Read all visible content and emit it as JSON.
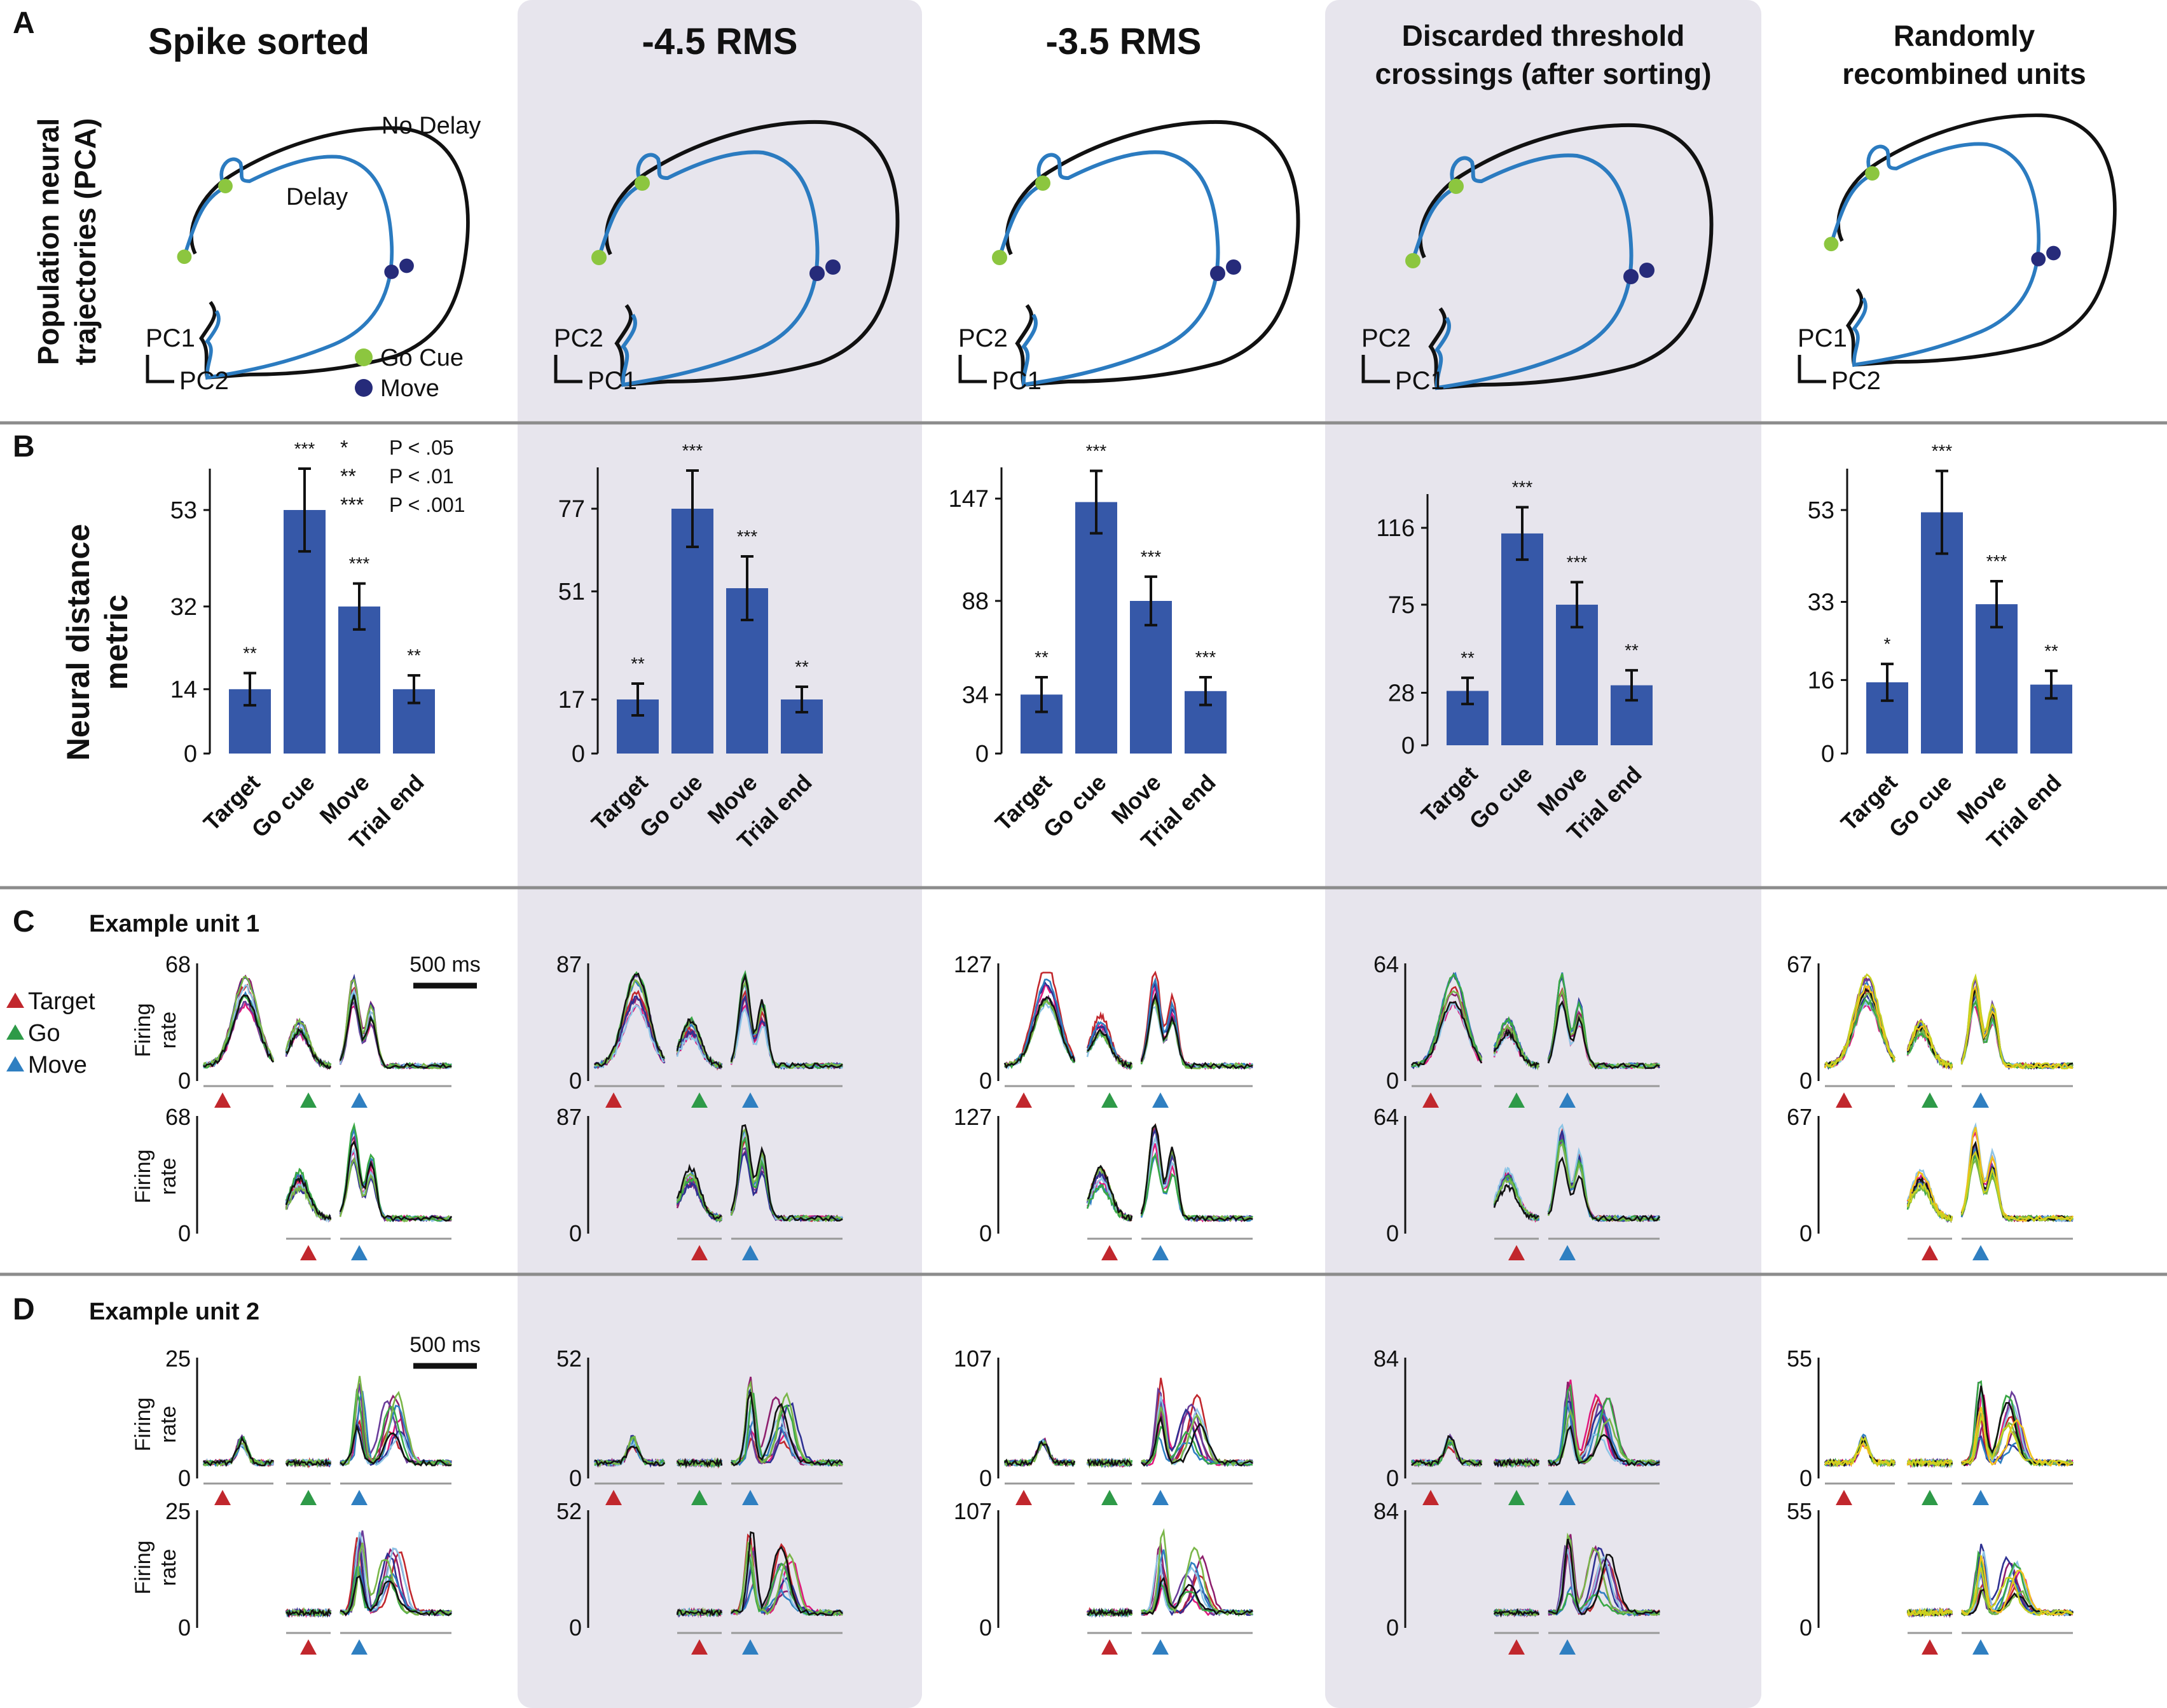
{
  "panel_letters": [
    "A",
    "B",
    "C",
    "D"
  ],
  "columns": [
    {
      "title": [
        "Spike sorted"
      ],
      "pc_bottom": "PC2",
      "pc_left": "PC1",
      "shaded": false
    },
    {
      "title": [
        "-4.5 RMS"
      ],
      "pc_bottom": "PC1",
      "pc_left": "PC2",
      "shaded": true
    },
    {
      "title": [
        "-3.5 RMS"
      ],
      "pc_bottom": "PC1",
      "pc_left": "PC2",
      "shaded": false
    },
    {
      "title": [
        "Discarded threshold",
        "crossings (after sorting)"
      ],
      "pc_bottom": "PC1",
      "pc_left": "PC2",
      "shaded": true
    },
    {
      "title": [
        "Randomly",
        "recombined units"
      ],
      "pc_bottom": "PC2",
      "pc_left": "PC1",
      "shaded": false
    }
  ],
  "row_a": {
    "ylabel": [
      "Population neural",
      "trajectories (PCA)"
    ],
    "label_no_delay": "No Delay",
    "label_delay": "Delay",
    "legend": [
      {
        "label": "Go Cue",
        "color": "#8cc63f"
      },
      {
        "label": "Move",
        "color": "#262b7a"
      }
    ]
  },
  "row_b": {
    "ylabel": [
      "Neural distance",
      "metric"
    ],
    "sig_legend": [
      {
        "stars": "*",
        "text": "P < .05"
      },
      {
        "stars": "**",
        "text": "P < .01"
      },
      {
        "stars": "***",
        "text": "P < .001"
      }
    ]
  },
  "row_c": {
    "title": "Example unit 1",
    "scale_label": "500 ms"
  },
  "row_d": {
    "title": "Example unit 2",
    "scale_label": "500 ms"
  },
  "trace_ylabel": [
    "Firing",
    "rate"
  ],
  "event_legend": [
    {
      "label": "Target",
      "color": "#c1272d"
    },
    {
      "label": "Go",
      "color": "#2e9a48"
    },
    {
      "label": "Move",
      "color": "#2f7fc1"
    }
  ],
  "colors": {
    "bar": "#3658a8",
    "shade": "#e7e5ed",
    "no_delay": "#111111",
    "delay": "#2b7bc0",
    "traces": [
      "#c1272d",
      "#e0197d",
      "#8e1f6e",
      "#6a3d9a",
      "#2e3192",
      "#2f7fc1",
      "#8ec5e6",
      "#39a845",
      "#7ab648",
      "#111111"
    ],
    "traces_random_extra": [
      "#f2c21b",
      "#c8d320"
    ]
  },
  "chart_data": [
    {
      "type": "bar",
      "panel": "B-Spike sorted",
      "categories": [
        "Target",
        "Go cue",
        "Move",
        "Trial end"
      ],
      "values": [
        14,
        53,
        32,
        14
      ],
      "error": [
        3.5,
        9,
        5,
        3
      ],
      "significance": [
        "**",
        "***",
        "***",
        "**"
      ],
      "yticks": [
        0,
        14,
        32,
        53
      ],
      "ylim": [
        0,
        62
      ]
    },
    {
      "type": "bar",
      "panel": "B--4.5 RMS",
      "categories": [
        "Target",
        "Go cue",
        "Move",
        "Trial end"
      ],
      "values": [
        17,
        77,
        52,
        17
      ],
      "error": [
        5,
        12,
        10,
        4
      ],
      "significance": [
        "**",
        "***",
        "***",
        "**"
      ],
      "yticks": [
        0,
        17,
        51,
        77
      ],
      "ylim": [
        0,
        90
      ]
    },
    {
      "type": "bar",
      "panel": "B--3.5 RMS",
      "categories": [
        "Target",
        "Go cue",
        "Move",
        "Trial end"
      ],
      "values": [
        34,
        145,
        88,
        36
      ],
      "error": [
        10,
        18,
        14,
        8
      ],
      "significance": [
        "**",
        "***",
        "***",
        "***"
      ],
      "yticks": [
        0,
        34,
        88,
        147
      ],
      "ylim": [
        0,
        165
      ]
    },
    {
      "type": "bar",
      "panel": "B-Discarded threshold crossings (after sorting)",
      "categories": [
        "Target",
        "Go cue",
        "Move",
        "Trial end"
      ],
      "values": [
        29,
        113,
        75,
        32
      ],
      "error": [
        7,
        14,
        12,
        8
      ],
      "significance": [
        "**",
        "***",
        "***",
        "**"
      ],
      "yticks": [
        0,
        28,
        75,
        116
      ],
      "ylim": [
        0,
        134
      ]
    },
    {
      "type": "bar",
      "panel": "B-Randomly recombined units",
      "categories": [
        "Target",
        "Go cue",
        "Move",
        "Trial end"
      ],
      "values": [
        15.5,
        52.5,
        32.5,
        15
      ],
      "error": [
        4,
        9,
        5,
        3
      ],
      "significance": [
        "*",
        "***",
        "***",
        "**"
      ],
      "yticks": [
        0,
        16,
        33,
        53
      ],
      "ylim": [
        0,
        62
      ]
    },
    {
      "type": "line",
      "panel": "C/D firing-rate traces",
      "unit1_ymax": [
        68,
        87,
        127,
        64,
        67
      ],
      "unit2_ymax": [
        25,
        52,
        107,
        84,
        55
      ]
    }
  ]
}
